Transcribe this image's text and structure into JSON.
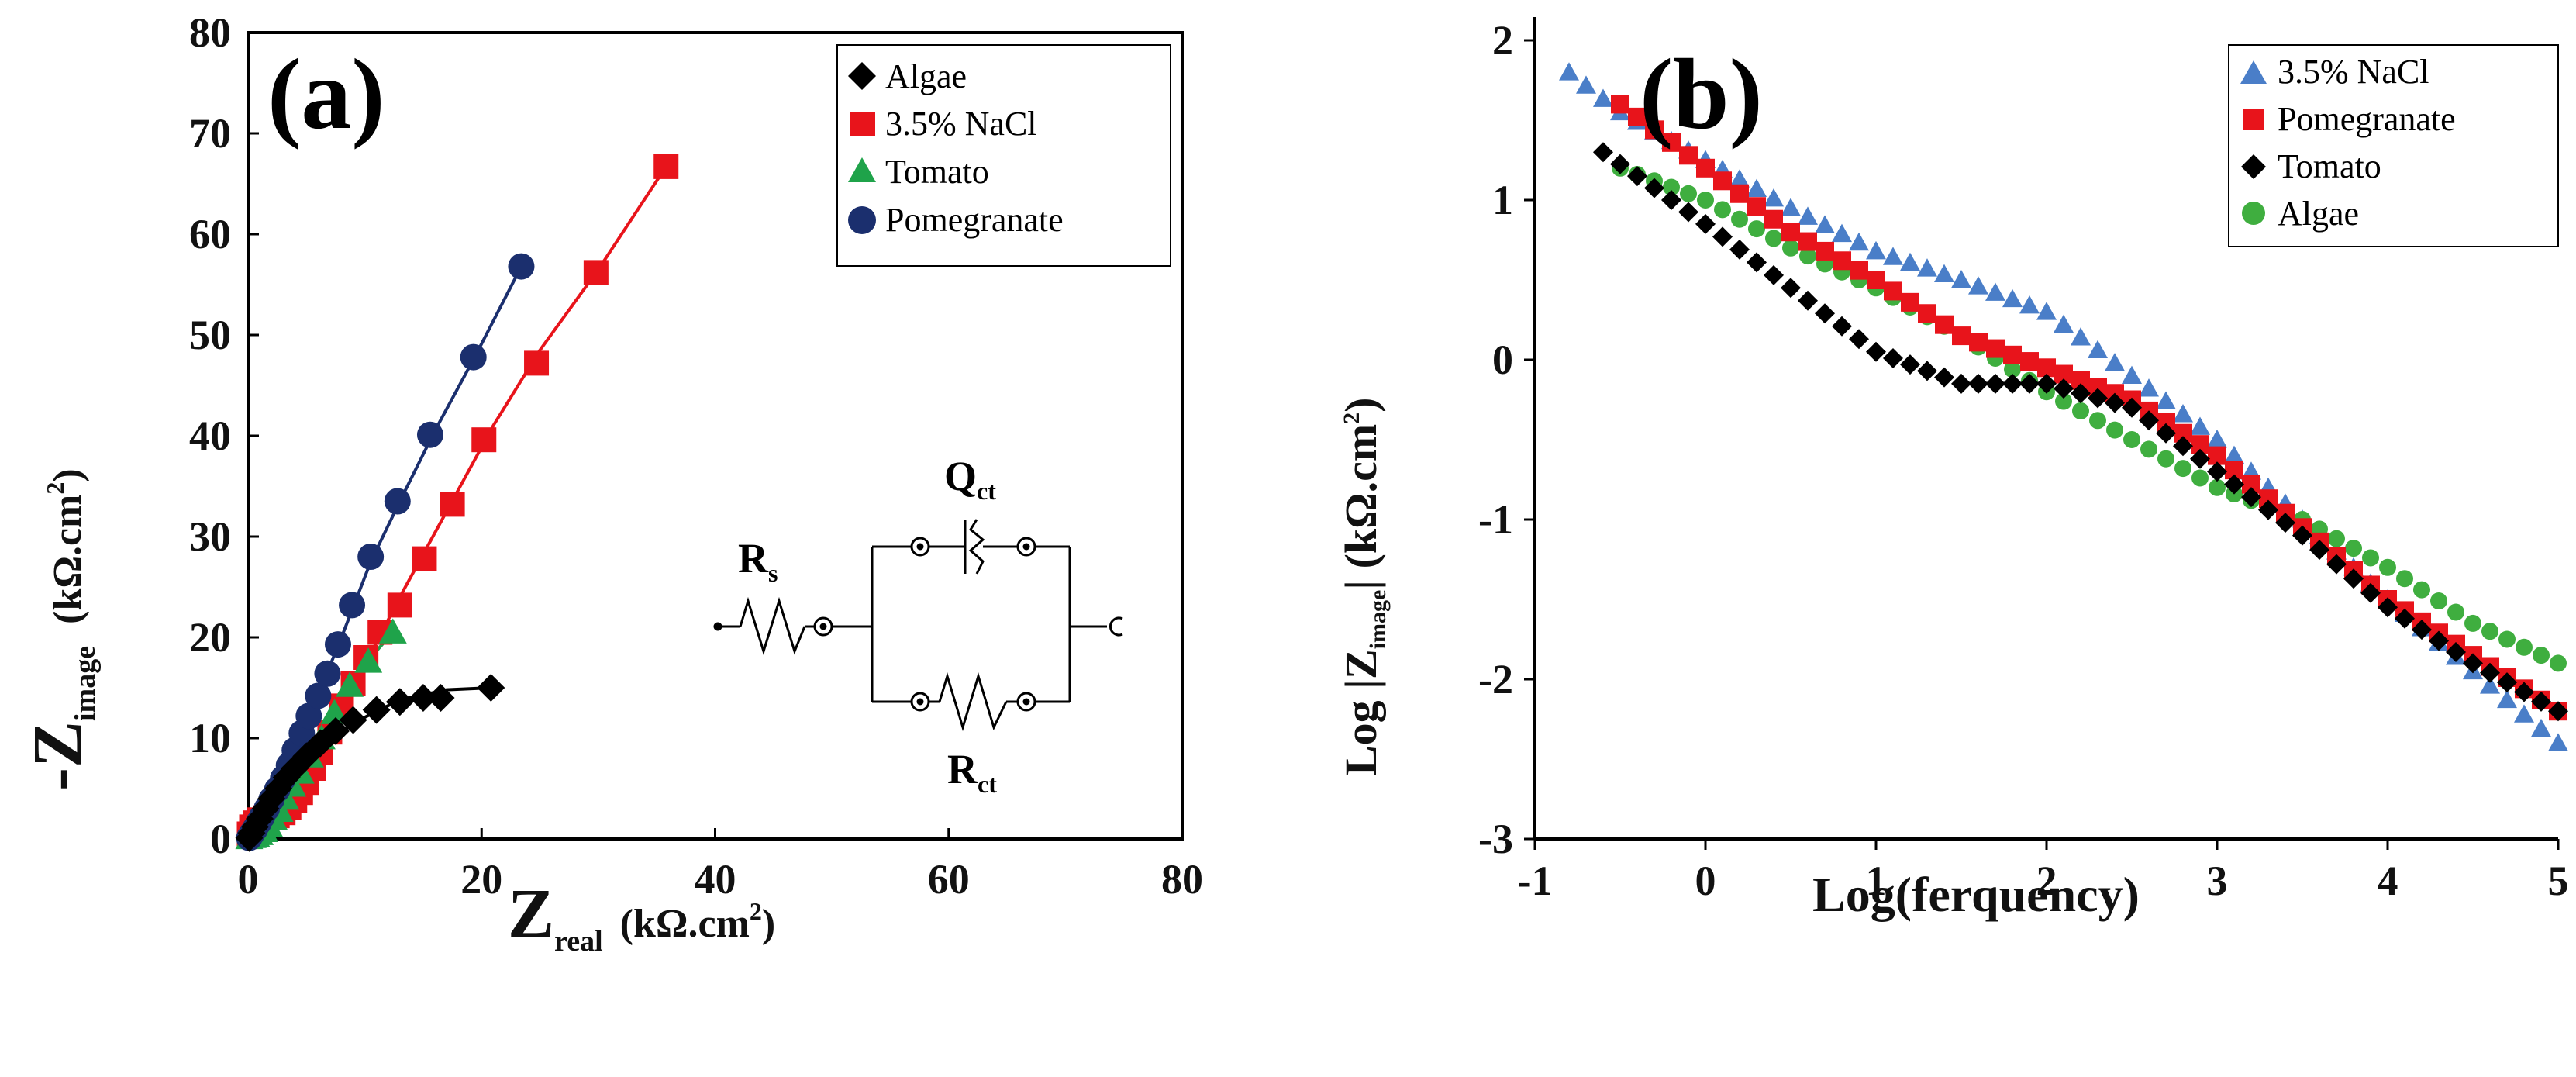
{
  "chart_data": [
    {
      "type": "scatter",
      "panel_label": "(a)",
      "xlabel_main": "Z",
      "xlabel_sub": "real",
      "xlabel_unit": "(kΩ.cm",
      "xlabel_sup": "2",
      "xlabel_close": ")",
      "ylabel_main": "-Z",
      "ylabel_sub": "image",
      "ylabel_unit": "(kΩ.cm",
      "ylabel_sup": "2",
      "ylabel_close": ")",
      "xlim": [
        0,
        80
      ],
      "ylim": [
        0,
        80
      ],
      "xticks": [
        "0",
        "20",
        "40",
        "60",
        "80"
      ],
      "yticks": [
        "0",
        "10",
        "20",
        "30",
        "40",
        "50",
        "60",
        "70",
        "80"
      ],
      "legend_position": "top-right",
      "series": [
        {
          "name": "Algae",
          "marker": "diamond",
          "color": "#000000",
          "points": [
            [
              0.1,
              0.1
            ],
            [
              0.3,
              0.6
            ],
            [
              0.6,
              1.2
            ],
            [
              1,
              2
            ],
            [
              1.5,
              3
            ],
            [
              2,
              4
            ],
            [
              2.6,
              5
            ],
            [
              3.3,
              6.1
            ],
            [
              4,
              7
            ],
            [
              5,
              8.2
            ],
            [
              6.2,
              9.5
            ],
            [
              7.5,
              10.7
            ],
            [
              9,
              11.8
            ],
            [
              11,
              12.8
            ],
            [
              13,
              13.6
            ],
            [
              15,
              14
            ],
            [
              16.5,
              14
            ],
            [
              20.8,
              15
            ]
          ],
          "fit": [
            [
              0,
              0
            ],
            [
              2,
              3.5
            ],
            [
              5,
              7.5
            ],
            [
              9,
              11.5
            ],
            [
              13,
              13.8
            ],
            [
              17,
              14.8
            ],
            [
              20.8,
              15
            ]
          ]
        },
        {
          "name": "3.5% NaCl",
          "marker": "square",
          "color": "#e8141b",
          "points": [
            [
              0.1,
              0.5
            ],
            [
              0.3,
              1.2
            ],
            [
              0.6,
              1.6
            ],
            [
              1,
              1.9
            ],
            [
              1.5,
              2.1
            ],
            [
              2,
              2.2
            ],
            [
              2.5,
              2.3
            ],
            [
              3,
              2.6
            ],
            [
              3.5,
              3.1
            ],
            [
              4,
              3.8
            ],
            [
              4.5,
              4.6
            ],
            [
              5,
              5.6
            ],
            [
              5.6,
              7
            ],
            [
              6.2,
              8.6
            ],
            [
              7,
              10.6
            ],
            [
              8,
              13.2
            ],
            [
              9,
              15.4
            ],
            [
              10.1,
              18
            ],
            [
              11.3,
              20.5
            ],
            [
              13,
              23.2
            ],
            [
              15.1,
              27.8
            ],
            [
              17.5,
              33.2
            ],
            [
              20.2,
              39.6
            ],
            [
              24.7,
              47.2
            ],
            [
              29.8,
              56.2
            ],
            [
              35.8,
              66.7
            ]
          ],
          "fit": [
            [
              0,
              1
            ],
            [
              2,
              2.2
            ],
            [
              4,
              3.8
            ],
            [
              6,
              8
            ],
            [
              9,
              15
            ],
            [
              13,
              24
            ],
            [
              17,
              32.5
            ],
            [
              21,
              41
            ],
            [
              25,
              48.5
            ],
            [
              30,
              56.5
            ],
            [
              35.8,
              66.7
            ]
          ]
        },
        {
          "name": "Tomato",
          "marker": "triangle",
          "color": "#1fa34a",
          "points": [
            [
              0.1,
              0.1
            ],
            [
              0.4,
              0.2
            ],
            [
              0.7,
              0.3
            ],
            [
              1,
              0.5
            ],
            [
              1.4,
              0.8
            ],
            [
              1.8,
              1.3
            ],
            [
              2.2,
              2
            ],
            [
              2.7,
              2.8
            ],
            [
              3.2,
              4
            ],
            [
              3.8,
              5.3
            ],
            [
              4.5,
              6.6
            ],
            [
              5.3,
              8.2
            ],
            [
              6.3,
              10
            ],
            [
              7.4,
              12.5
            ],
            [
              8.7,
              15.2
            ],
            [
              10.3,
              17.6
            ],
            [
              12.4,
              20.5
            ]
          ],
          "fit": [
            [
              0,
              0
            ],
            [
              2,
              1.5
            ],
            [
              4,
              5.5
            ],
            [
              6,
              9.5
            ],
            [
              8.5,
              14.5
            ],
            [
              10.5,
              18
            ],
            [
              12.4,
              20.5
            ]
          ]
        },
        {
          "name": "Pomegranate",
          "marker": "circle",
          "color": "#1b2f6e",
          "points": [
            [
              0.1,
              0.1
            ],
            [
              0.3,
              0.5
            ],
            [
              0.6,
              1
            ],
            [
              0.9,
              1.6
            ],
            [
              1.2,
              2.2
            ],
            [
              1.6,
              3
            ],
            [
              2,
              3.9
            ],
            [
              2.5,
              4.9
            ],
            [
              3,
              6
            ],
            [
              3.5,
              7.3
            ],
            [
              4,
              8.8
            ],
            [
              4.6,
              10.5
            ],
            [
              5.2,
              12.2
            ],
            [
              6,
              14.2
            ],
            [
              6.8,
              16.4
            ],
            [
              7.7,
              19.3
            ],
            [
              8.9,
              23.2
            ],
            [
              10.5,
              28
            ],
            [
              12.8,
              33.5
            ],
            [
              15.6,
              40.1
            ],
            [
              19.3,
              47.8
            ],
            [
              23.4,
              56.8
            ]
          ],
          "fit": [
            [
              0,
              0
            ],
            [
              2,
              3.8
            ],
            [
              4,
              8.7
            ],
            [
              6,
              14.3
            ],
            [
              8,
              20
            ],
            [
              10.5,
              27.5
            ],
            [
              13,
              33.5
            ],
            [
              16,
              40.5
            ],
            [
              19.5,
              48
            ],
            [
              23.4,
              56.8
            ]
          ]
        }
      ],
      "circuit": {
        "rs_main": "R",
        "rs_sub": "s",
        "qct_main": "Q",
        "qct_sub": "ct",
        "rct_main": "R",
        "rct_sub": "ct"
      }
    },
    {
      "type": "scatter",
      "panel_label": "(b)",
      "xlabel": "Log(ferquency)",
      "ylabel_prefix": "Log |Z",
      "ylabel_sub": "image",
      "ylabel_unit": "| (kΩ.cm",
      "ylabel_sup": "2",
      "ylabel_close": ")",
      "xlim": [
        -1,
        5
      ],
      "ylim": [
        -3,
        2
      ],
      "xticks": [
        "-1",
        "0",
        "1",
        "2",
        "3",
        "4",
        "5"
      ],
      "yticks": [
        "-3",
        "-2",
        "-1",
        "0",
        "1",
        "2"
      ],
      "legend_position": "top-right",
      "series": [
        {
          "name": "3.5% NaCl",
          "marker": "triangle",
          "color": "#4a7ec8",
          "anchors": [
            [
              -0.8,
              1.8
            ],
            [
              -0.5,
              1.55
            ],
            [
              0,
              1.25
            ],
            [
              0.5,
              0.95
            ],
            [
              1,
              0.68
            ],
            [
              1.5,
              0.5
            ],
            [
              2,
              0.3
            ],
            [
              2.5,
              -0.1
            ],
            [
              3,
              -0.5
            ],
            [
              3.5,
              -1.0
            ],
            [
              4,
              -1.5
            ],
            [
              4.5,
              -1.95
            ],
            [
              5,
              -2.4
            ]
          ],
          "x_start": -0.8,
          "x_end": 5.0,
          "step": 0.1
        },
        {
          "name": "Pomegranate",
          "marker": "square",
          "color": "#e8141b",
          "anchors": [
            [
              -0.5,
              1.6
            ],
            [
              0,
              1.2
            ],
            [
              0.5,
              0.8
            ],
            [
              1,
              0.5
            ],
            [
              1.5,
              0.15
            ],
            [
              2,
              -0.05
            ],
            [
              2.5,
              -0.25
            ],
            [
              3,
              -0.6
            ],
            [
              3.5,
              -1.05
            ],
            [
              4,
              -1.5
            ],
            [
              4.5,
              -1.85
            ],
            [
              5,
              -2.2
            ]
          ],
          "x_start": -0.5,
          "x_end": 5.0,
          "step": 0.1
        },
        {
          "name": "Tomato",
          "marker": "diamond",
          "color": "#000000",
          "anchors": [
            [
              -0.6,
              1.3
            ],
            [
              0,
              0.85
            ],
            [
              0.5,
              0.45
            ],
            [
              1,
              0.05
            ],
            [
              1.5,
              -0.15
            ],
            [
              2,
              -0.15
            ],
            [
              2.5,
              -0.3
            ],
            [
              3,
              -0.7
            ],
            [
              3.5,
              -1.1
            ],
            [
              4,
              -1.55
            ],
            [
              4.5,
              -1.9
            ],
            [
              5,
              -2.2
            ]
          ],
          "x_start": -0.6,
          "x_end": 5.0,
          "step": 0.1
        },
        {
          "name": "Algae",
          "marker": "circle",
          "color": "#3fae3f",
          "anchors": [
            [
              -0.5,
              1.2
            ],
            [
              0,
              1.0
            ],
            [
              0.5,
              0.7
            ],
            [
              1,
              0.45
            ],
            [
              1.5,
              0.15
            ],
            [
              2,
              -0.2
            ],
            [
              2.5,
              -0.5
            ],
            [
              3,
              -0.8
            ],
            [
              3.5,
              -1.0
            ],
            [
              4,
              -1.3
            ],
            [
              4.5,
              -1.65
            ],
            [
              5,
              -1.9
            ]
          ],
          "x_start": -0.5,
          "x_end": 5.0,
          "step": 0.1
        }
      ]
    }
  ]
}
